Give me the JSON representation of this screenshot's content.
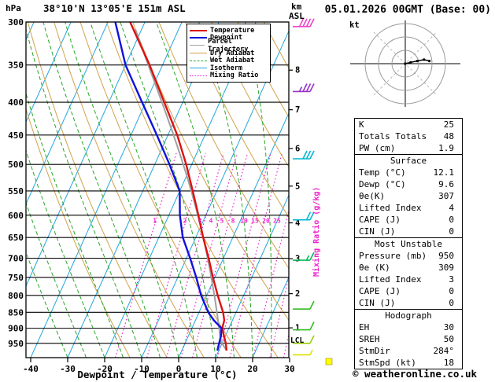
{
  "header": {
    "pressure_unit": "hPa",
    "station": "38°10'N 13°05'E 151m ASL",
    "datetime": "05.01.2026 00GMT (Base: 00)"
  },
  "axes": {
    "alt_unit_km": "km",
    "alt_unit_asl": "ASL",
    "xlabel": "Dewpoint / Temperature (°C)",
    "mixing_ratio_axis_label": "Mixing Ratio (g/kg)",
    "lcl_label": "LCL"
  },
  "legend": [
    {
      "label": "Temperature",
      "color": "#dd1111",
      "style": "solid"
    },
    {
      "label": "Dewpoint",
      "color": "#1111dd",
      "style": "solid"
    },
    {
      "label": "Parcel Trajectory",
      "color": "#a0a0a0",
      "style": "solid"
    },
    {
      "label": "Dry Adiabat",
      "color": "#d2a24c",
      "style": "solid"
    },
    {
      "label": "Wet Adiabat",
      "color": "#2aa52a",
      "style": "dashed"
    },
    {
      "label": "Isotherm",
      "color": "#22a6dd",
      "style": "solid"
    },
    {
      "label": "Mixing Ratio",
      "color": "#ee22cc",
      "style": "dotted"
    }
  ],
  "chart_data": {
    "type": "skewt-log-p",
    "pressure_axis_hpa": [
      300,
      350,
      400,
      450,
      500,
      550,
      600,
      650,
      700,
      750,
      800,
      850,
      900,
      950
    ],
    "temp_axis_c": [
      -40,
      -30,
      -20,
      -10,
      0,
      10,
      20,
      30
    ],
    "altitude_axis_km": [
      1,
      2,
      3,
      4,
      5,
      6,
      7,
      8
    ],
    "mixing_ratio_lines_gkg": [
      1,
      2,
      3,
      4,
      5,
      8,
      10,
      15,
      20,
      25
    ],
    "temperature_profile": [
      [
        975,
        12.1
      ],
      [
        950,
        11.0
      ],
      [
        925,
        9.6
      ],
      [
        900,
        8.2
      ],
      [
        875,
        7.8
      ],
      [
        850,
        6.5
      ],
      [
        800,
        3.0
      ],
      [
        750,
        -0.5
      ],
      [
        700,
        -4.0
      ],
      [
        650,
        -8.0
      ],
      [
        600,
        -12.0
      ],
      [
        550,
        -16.5
      ],
      [
        500,
        -21.5
      ],
      [
        450,
        -27.5
      ],
      [
        400,
        -35.0
      ],
      [
        350,
        -43.5
      ],
      [
        300,
        -54.0
      ]
    ],
    "dewpoint_profile": [
      [
        975,
        9.6
      ],
      [
        950,
        9.2
      ],
      [
        925,
        8.8
      ],
      [
        900,
        8.0
      ],
      [
        875,
        5.0
      ],
      [
        850,
        2.5
      ],
      [
        800,
        -1.5
      ],
      [
        750,
        -5.0
      ],
      [
        700,
        -9.0
      ],
      [
        650,
        -13.5
      ],
      [
        600,
        -17.0
      ],
      [
        550,
        -20.0
      ],
      [
        500,
        -26.0
      ],
      [
        450,
        -33.0
      ],
      [
        400,
        -41.0
      ],
      [
        350,
        -50.0
      ],
      [
        300,
        -58.0
      ]
    ],
    "parcel": {
      "pressure": 975,
      "temp": 12.1,
      "dewpoint": 9.6,
      "lcl_pressure": 938
    },
    "wind_barbs": [
      {
        "pressure": 305,
        "speed_kt": 40,
        "color": "#ee44cc"
      },
      {
        "pressure": 385,
        "speed_kt": 35,
        "color": "#9933cc"
      },
      {
        "pressure": 490,
        "speed_kt": 30,
        "color": "#00b8d4"
      },
      {
        "pressure": 610,
        "speed_kt": 20,
        "color": "#00b8d4"
      },
      {
        "pressure": 705,
        "speed_kt": 15,
        "color": "#00bb55"
      },
      {
        "pressure": 840,
        "speed_kt": 10,
        "color": "#33bb22"
      },
      {
        "pressure": 905,
        "speed_kt": 10,
        "color": "#33bb22"
      },
      {
        "pressure": 950,
        "speed_kt": 10,
        "color": "#99cc00"
      },
      {
        "pressure": 990,
        "speed_kt": 5,
        "color": "#dddd00"
      }
    ],
    "surface_marker_color": "#ffff00",
    "colors": {
      "temperature": "#dd1111",
      "dewpoint": "#1111dd",
      "parcel": "#a0a0a0",
      "dry_adiabat": "#d2a24c",
      "wet_adiabat": "#2aa52a",
      "isotherm": "#22a6dd",
      "mixing_ratio": "#ee22cc"
    }
  },
  "hodograph": {
    "unit": "kt",
    "rings_kt": [
      10,
      20,
      30
    ],
    "trace_uv_kt": [
      [
        0,
        0
      ],
      [
        4,
        1
      ],
      [
        9,
        2
      ],
      [
        14,
        3
      ],
      [
        18,
        2
      ]
    ]
  },
  "table": {
    "sections": [
      {
        "title": null,
        "rows": [
          {
            "label": "K",
            "value": "25"
          },
          {
            "label": "Totals Totals",
            "value": "48"
          },
          {
            "label": "PW (cm)",
            "value": "1.9"
          }
        ]
      },
      {
        "title": "Surface",
        "rows": [
          {
            "label": "Temp (°C)",
            "value": "12.1"
          },
          {
            "label": "Dewp (°C)",
            "value": "9.6"
          },
          {
            "label": "θe(K)",
            "value": "307"
          },
          {
            "label": "Lifted Index",
            "value": "4"
          },
          {
            "label": "CAPE (J)",
            "value": "0"
          },
          {
            "label": "CIN (J)",
            "value": "0"
          }
        ]
      },
      {
        "title": "Most Unstable",
        "rows": [
          {
            "label": "Pressure (mb)",
            "value": "950"
          },
          {
            "label": "θe (K)",
            "value": "309"
          },
          {
            "label": "Lifted Index",
            "value": "3"
          },
          {
            "label": "CAPE (J)",
            "value": "0"
          },
          {
            "label": "CIN (J)",
            "value": "0"
          }
        ]
      },
      {
        "title": "Hodograph",
        "rows": [
          {
            "label": "EH",
            "value": "30"
          },
          {
            "label": "SREH",
            "value": "50"
          },
          {
            "label": "StmDir",
            "value": "284°"
          },
          {
            "label": "StmSpd (kt)",
            "value": "18"
          }
        ]
      }
    ]
  },
  "footer": {
    "credit": "© weatheronline.co.uk"
  }
}
